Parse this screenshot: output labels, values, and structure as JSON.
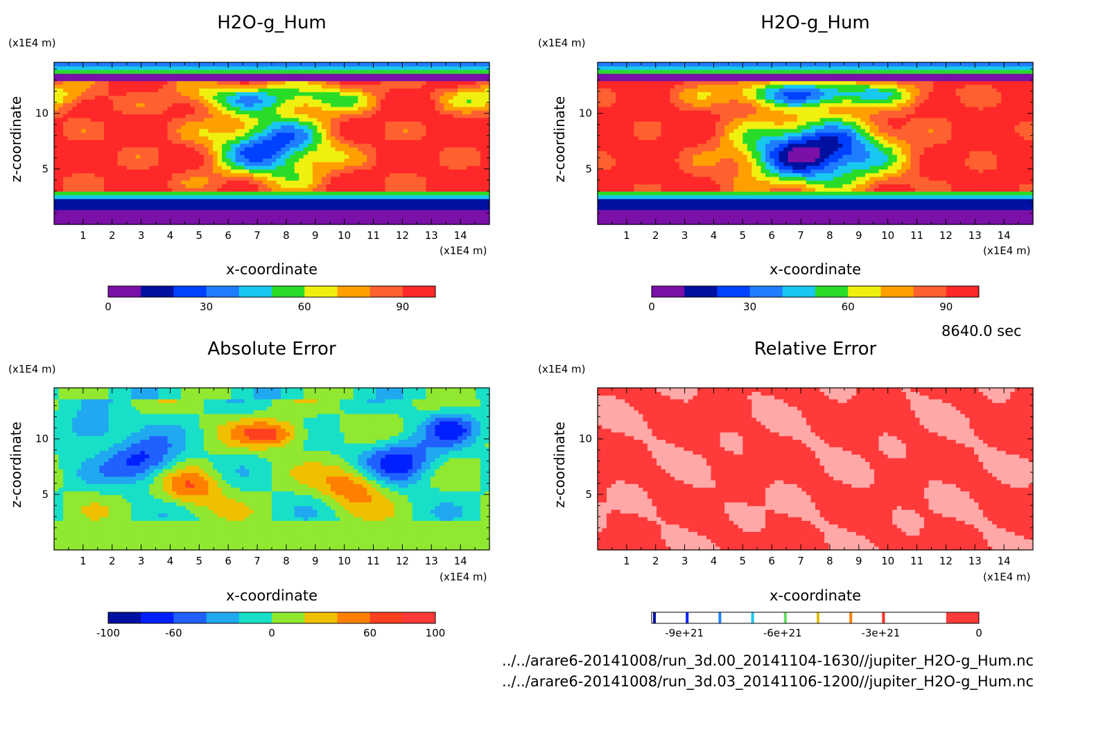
{
  "chart_data": [
    {
      "type": "heatmap",
      "title": "H2O-g_Hum",
      "xlabel": "x-coordinate",
      "ylabel": "z-coordinate",
      "x_unit": "(x1E4 m)",
      "y_unit": "(x1E4 m)",
      "xlim": [
        0,
        15
      ],
      "ylim": [
        0,
        14.6
      ],
      "x_ticks": [
        "1",
        "2",
        "3",
        "4",
        "5",
        "6",
        "7",
        "8",
        "9",
        "10",
        "11",
        "12",
        "13",
        "14"
      ],
      "y_ticks": [
        "5",
        "10"
      ],
      "colorbar": {
        "range": [
          0,
          100
        ],
        "tick_labels": [
          "0",
          "30",
          "60",
          "90"
        ],
        "colors": [
          "#7a10a8",
          "#0010a0",
          "#0040ff",
          "#1e7eff",
          "#18c8f0",
          "#28dc28",
          "#f0f010",
          "#ffa000",
          "#ff6030",
          "#ff2828"
        ]
      }
    },
    {
      "type": "heatmap",
      "title": "H2O-g_Hum",
      "xlabel": "x-coordinate",
      "ylabel": "z-coordinate",
      "x_unit": "(x1E4 m)",
      "y_unit": "(x1E4 m)",
      "xlim": [
        0,
        15
      ],
      "ylim": [
        0,
        14.6
      ],
      "x_ticks": [
        "1",
        "2",
        "3",
        "4",
        "5",
        "6",
        "7",
        "8",
        "9",
        "10",
        "11",
        "12",
        "13",
        "14"
      ],
      "y_ticks": [
        "5",
        "10"
      ],
      "colorbar": {
        "range": [
          0,
          100
        ],
        "tick_labels": [
          "0",
          "30",
          "60",
          "90"
        ],
        "colors": [
          "#7a10a8",
          "#0010a0",
          "#0040ff",
          "#1e7eff",
          "#18c8f0",
          "#28dc28",
          "#f0f010",
          "#ffa000",
          "#ff6030",
          "#ff2828"
        ]
      }
    },
    {
      "type": "heatmap",
      "title": "Absolute Error",
      "xlabel": "x-coordinate",
      "ylabel": "z-coordinate",
      "x_unit": "(x1E4 m)",
      "y_unit": "(x1E4 m)",
      "xlim": [
        0,
        15
      ],
      "ylim": [
        0,
        14.6
      ],
      "x_ticks": [
        "1",
        "2",
        "3",
        "4",
        "5",
        "6",
        "7",
        "8",
        "9",
        "10",
        "11",
        "12",
        "13",
        "14"
      ],
      "y_ticks": [
        "5",
        "10"
      ],
      "colorbar": {
        "range": [
          -100,
          100
        ],
        "tick_labels": [
          "-100",
          "-60",
          "0",
          "60",
          "100"
        ],
        "colors": [
          "#0010a0",
          "#0020ff",
          "#2060ff",
          "#20a8f0",
          "#18e0c8",
          "#90e830",
          "#f0c000",
          "#ff8000",
          "#ff4020",
          "#ff3838"
        ]
      }
    },
    {
      "type": "heatmap",
      "title": "Relative Error",
      "xlabel": "x-coordinate",
      "ylabel": "z-coordinate",
      "x_unit": "(x1E4 m)",
      "y_unit": "(x1E4 m)",
      "xlim": [
        0,
        15
      ],
      "ylim": [
        0,
        14.6
      ],
      "x_ticks": [
        "1",
        "2",
        "3",
        "4",
        "5",
        "6",
        "7",
        "8",
        "9",
        "10",
        "11",
        "12",
        "13",
        "14"
      ],
      "y_ticks": [
        "5",
        "10"
      ],
      "colorbar": {
        "range": [
          -1e+22,
          0
        ],
        "tick_labels": [
          "-9e+21",
          "-6e+21",
          "-3e+21",
          "0"
        ],
        "colors": [
          "#ffffff",
          "#ffffff",
          "#ffffff",
          "#ffffff",
          "#ffffff",
          "#ffffff",
          "#ffffff",
          "#ffffff",
          "#ffffff",
          "#ff3a3a"
        ],
        "mark_colors": [
          "#0010a0",
          "#0020ff",
          "#2080ff",
          "#18c8f0",
          "#60e060",
          "#e0c000",
          "#ff8000",
          "#ff3020"
        ]
      }
    }
  ],
  "time_label": "8640.0 sec",
  "footer": {
    "line1": "../../arare6-20141008/run_3d.00_20141104-1630//jupiter_H2O-g_Hum.nc",
    "line2": "../../arare6-20141008/run_3d.03_20141106-1200//jupiter_H2O-g_Hum.nc"
  }
}
